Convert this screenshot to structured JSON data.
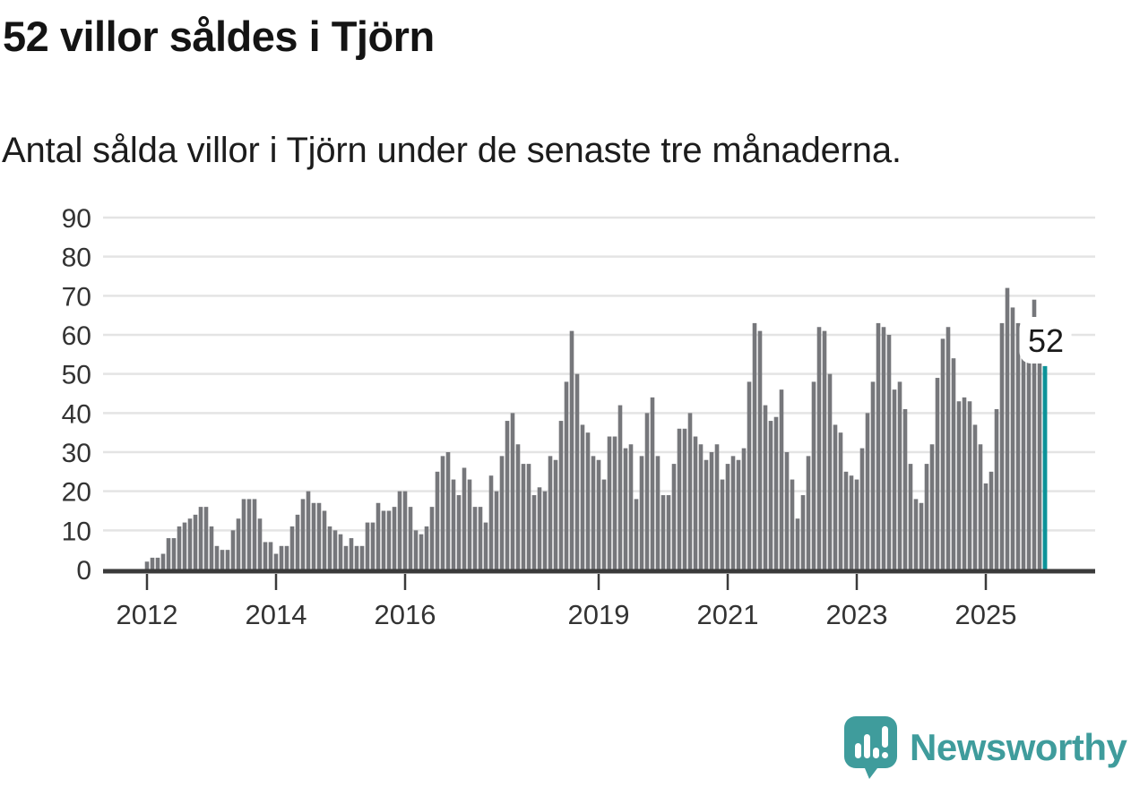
{
  "header": {
    "title": "52 villor såldes i Tjörn",
    "subtitle": "Antal sålda villor i Tjörn under de senaste tre månaderna."
  },
  "chart_data": {
    "type": "bar",
    "title": "52 villor såldes i Tjörn",
    "subtitle": "Antal sålda villor i Tjörn under de senaste tre månaderna.",
    "frequency": "monthly",
    "start": "2012-01",
    "end": "2025-12",
    "values": [
      2,
      3,
      3,
      4,
      8,
      8,
      11,
      12,
      13,
      14,
      16,
      16,
      11,
      6,
      5,
      5,
      10,
      13,
      18,
      18,
      18,
      13,
      7,
      7,
      4,
      6,
      6,
      11,
      14,
      18,
      20,
      17,
      17,
      15,
      11,
      10,
      9,
      6,
      8,
      6,
      6,
      12,
      12,
      17,
      15,
      15,
      16,
      20,
      20,
      16,
      10,
      9,
      11,
      16,
      25,
      29,
      30,
      23,
      19,
      26,
      23,
      16,
      16,
      12,
      24,
      20,
      29,
      38,
      40,
      32,
      27,
      27,
      19,
      21,
      20,
      29,
      28,
      38,
      48,
      61,
      50,
      37,
      35,
      29,
      28,
      23,
      34,
      34,
      42,
      31,
      32,
      18,
      29,
      40,
      44,
      29,
      19,
      19,
      27,
      36,
      36,
      40,
      34,
      32,
      28,
      30,
      32,
      23,
      27,
      29,
      28,
      31,
      48,
      63,
      61,
      42,
      38,
      39,
      46,
      30,
      23,
      13,
      19,
      29,
      48,
      62,
      61,
      50,
      37,
      35,
      25,
      24,
      23,
      31,
      40,
      48,
      63,
      62,
      60,
      46,
      48,
      41,
      27,
      18,
      17,
      27,
      32,
      49,
      59,
      62,
      54,
      43,
      44,
      43,
      37,
      32,
      22,
      25,
      41,
      63,
      72,
      67,
      63,
      58,
      56,
      69,
      54,
      52
    ],
    "highlight": {
      "index": 167,
      "value": 52,
      "label": "52"
    },
    "annotation": {
      "text": "52"
    },
    "y_ticks": [
      0,
      10,
      20,
      30,
      40,
      50,
      60,
      70,
      80,
      90
    ],
    "x_ticks": [
      {
        "label": "2012",
        "index": 0
      },
      {
        "label": "2014",
        "index": 24
      },
      {
        "label": "2016",
        "index": 48
      },
      {
        "label": "2019",
        "index": 84
      },
      {
        "label": "2021",
        "index": 108
      },
      {
        "label": "2023",
        "index": 132
      },
      {
        "label": "2025",
        "index": 156
      }
    ],
    "ylim": [
      0,
      90
    ],
    "grid": true,
    "legend": "none",
    "bar_color": "#76777b",
    "highlight_color": "#0c9399",
    "grid_color": "#e4e4e4",
    "axis_color": "#3a3a3a",
    "tick_label_color": "#333333"
  },
  "branding": {
    "logo_text": "Newsworthy",
    "logo_color": "#3f9c9c"
  }
}
